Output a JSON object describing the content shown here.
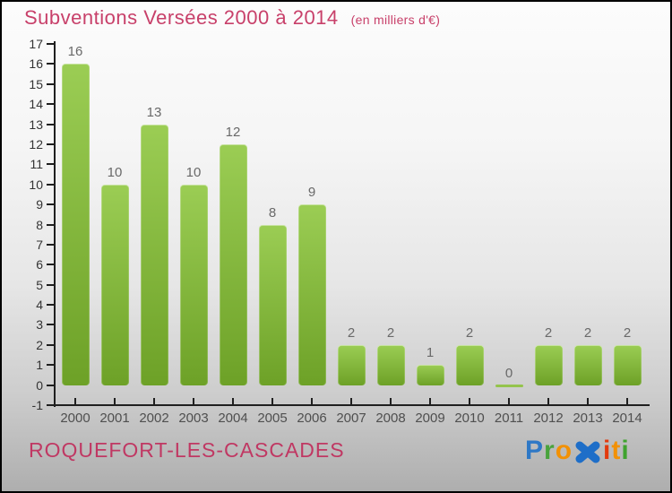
{
  "header": {
    "title": "Subventions Versées 2000 à 2014",
    "subtitle": "(en milliers d'€)",
    "title_color": "#c8406a"
  },
  "chart_data": {
    "type": "bar",
    "title": "Subventions Versées 2000 à 2014",
    "unit_label": "(en milliers d'€)",
    "categories": [
      "2000",
      "2001",
      "2002",
      "2003",
      "2004",
      "2005",
      "2006",
      "2007",
      "2008",
      "2009",
      "2010",
      "2011",
      "2012",
      "2013",
      "2014"
    ],
    "values": [
      16,
      10,
      13,
      10,
      12,
      8,
      9,
      2,
      2,
      1,
      2,
      0,
      2,
      2,
      2
    ],
    "xlabel": "",
    "ylabel": "",
    "ylim": [
      -1,
      17
    ],
    "ytick_step": 1,
    "grid": false,
    "legend": null,
    "bar_colors": {
      "top": "#9bcd54",
      "bottom": "#6da127",
      "zero_line": "#94c44c"
    },
    "value_label_color": "#696969",
    "axis_color": "#1f1f1f"
  },
  "footer": {
    "place": "ROQUEFORT-LES-CASCADES",
    "place_color": "#c03863",
    "logo": {
      "name": "Proxiti",
      "letters": [
        {
          "ch": "P",
          "color": "#2e78c6"
        },
        {
          "ch": "r",
          "color": "#4aa33c"
        },
        {
          "ch": "o",
          "color": "#f29105"
        },
        {
          "ch": "x",
          "color": "#1e6ec8",
          "style": "bold-x-icon"
        },
        {
          "ch": "i",
          "color": "#e23a0e"
        },
        {
          "ch": "t",
          "color": "#f29105"
        },
        {
          "ch": "i",
          "color": "#3fa32e"
        }
      ]
    }
  }
}
